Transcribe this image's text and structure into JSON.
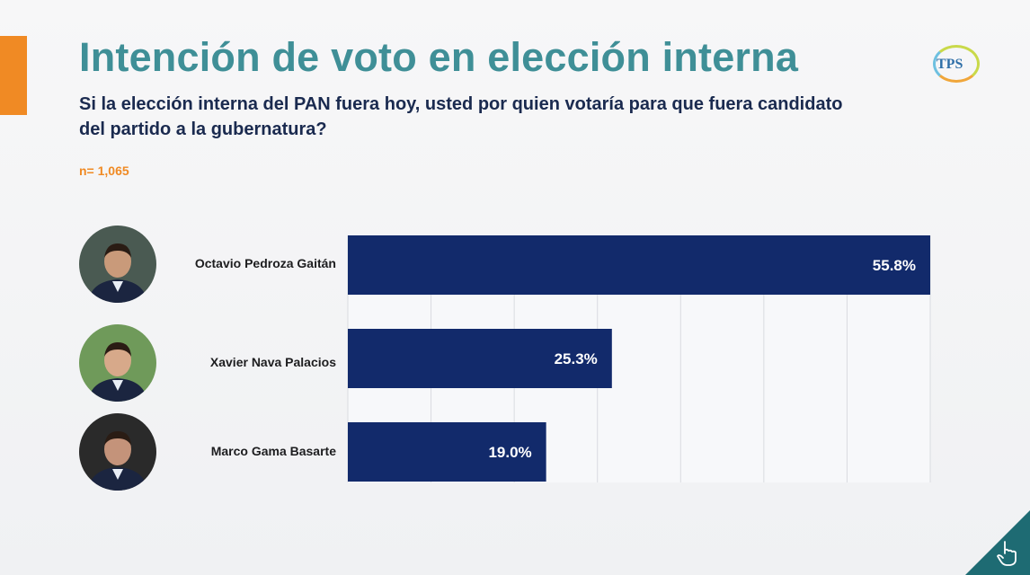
{
  "title": "Intención de voto en elección interna",
  "subtitle": "Si la elección interna del PAN fuera hoy, usted por quien votaría para que fuera candidato del partido a la gubernatura?",
  "sample": "n= 1,065",
  "logo_text": "TPS",
  "colors": {
    "title": "#3f8f97",
    "accent": "#f08a24",
    "bar": "#122a6b",
    "grid": "#d9dbe0",
    "corner": "#1e6b73"
  },
  "icons": [
    "candidate-photo-icon",
    "tps-logo-icon",
    "pointing-hand-icon"
  ],
  "chart_data": {
    "type": "bar",
    "orientation": "horizontal",
    "categories": [
      "Octavio Pedroza Gaitán",
      "Xavier Nava Palacios",
      "Marco Gama Basarte"
    ],
    "values": [
      55.8,
      25.3,
      19.0
    ],
    "value_labels": [
      "55.8%",
      "25.3%",
      "19.0%"
    ],
    "xlim": [
      0,
      70
    ],
    "grid": true,
    "legend": "none"
  }
}
